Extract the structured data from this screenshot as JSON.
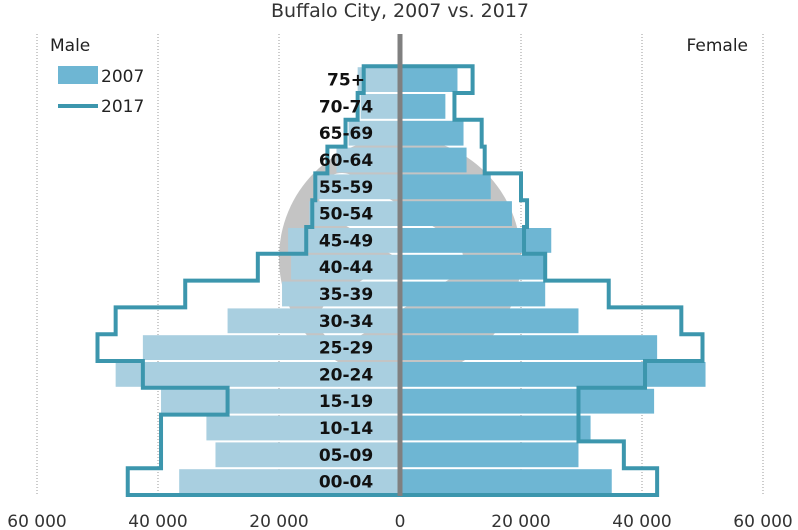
{
  "chart_data": {
    "type": "bar",
    "title": "Buffalo City, 2007 vs. 2017",
    "left_label": "Male",
    "right_label": "Female",
    "categories": [
      "00-04",
      "05-09",
      "10-14",
      "15-19",
      "20-24",
      "25-29",
      "30-34",
      "35-39",
      "40-44",
      "45-49",
      "50-54",
      "55-59",
      "60-64",
      "65-69",
      "70-74",
      "75+"
    ],
    "xlim": [
      -60000,
      60000
    ],
    "x_ticks": [
      -60000,
      -40000,
      -20000,
      0,
      20000,
      40000,
      60000
    ],
    "x_tick_labels": [
      "60 000",
      "40 000",
      "20 000",
      "0",
      "20 000",
      "40 000",
      "60 000"
    ],
    "grid": true,
    "legend_position": "top-left",
    "series": [
      {
        "name": "2007",
        "style": "bars",
        "male": [
          36500,
          30500,
          32000,
          39500,
          47000,
          42500,
          28500,
          19500,
          18000,
          18500,
          15000,
          14000,
          10500,
          8500,
          6500,
          7000
        ],
        "female": [
          35000,
          29500,
          31500,
          42000,
          50500,
          42500,
          29500,
          24000,
          24000,
          25000,
          18500,
          15000,
          11000,
          10500,
          7500,
          9500
        ]
      },
      {
        "name": "2017",
        "style": "outline",
        "male": [
          45000,
          39500,
          39500,
          28500,
          42500,
          50000,
          47000,
          35500,
          23500,
          15500,
          14500,
          14000,
          12000,
          9000,
          7000,
          6000
        ],
        "female": [
          42500,
          37000,
          29500,
          29500,
          40500,
          50000,
          46500,
          34500,
          24000,
          20500,
          21000,
          20000,
          14000,
          13500,
          9000,
          12000
        ]
      }
    ],
    "colors": {
      "male_2007": "#a9cfe0",
      "female_2007": "#6eb6d3",
      "outline_2017": "#3c96ad",
      "axis": "#808080",
      "watermark": "#888888"
    }
  }
}
